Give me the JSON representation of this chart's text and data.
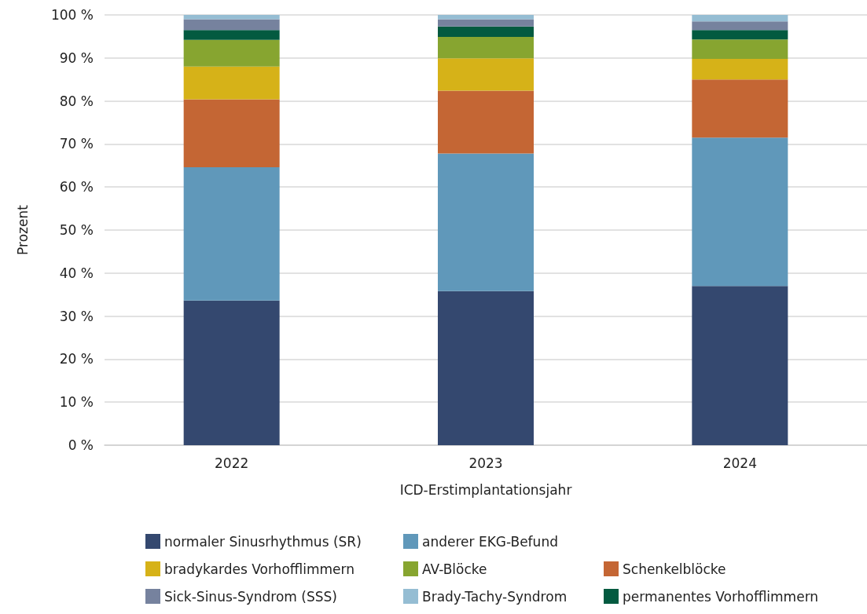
{
  "chart_data": {
    "type": "bar",
    "stacked": true,
    "xlabel": "ICD-Erstimplantationsjahr",
    "ylabel": "Prozent",
    "categories": [
      "2022",
      "2023",
      "2024"
    ],
    "series": [
      {
        "name": "normaler Sinusrhythmus (SR)",
        "color": "#34486f",
        "values": [
          33.6,
          35.8,
          37.0
        ]
      },
      {
        "name": "anderer EKG-Befund",
        "color": "#6098ba",
        "values": [
          31.0,
          32.0,
          34.5
        ]
      },
      {
        "name": "Schenkelblöcke",
        "color": "#c46634",
        "values": [
          15.8,
          14.6,
          13.5
        ]
      },
      {
        "name": "bradykardes Vorhofflimmern",
        "color": "#d6b218",
        "values": [
          7.6,
          7.5,
          4.8
        ]
      },
      {
        "name": "AV-Blöcke",
        "color": "#87a530",
        "values": [
          6.2,
          5.0,
          4.5
        ]
      },
      {
        "name": "permanentes Vorhofflimmern",
        "color": "#035a40",
        "values": [
          2.3,
          2.4,
          2.2
        ]
      },
      {
        "name": "Sick-Sinus-Syndrom (SSS)",
        "color": "#76829e",
        "values": [
          2.5,
          1.7,
          2.0
        ]
      },
      {
        "name": "Brady-Tachy-Syndrom",
        "color": "#95bdd3",
        "values": [
          1.0,
          1.0,
          1.5
        ]
      }
    ],
    "ylim": [
      0,
      100
    ],
    "yticks": [
      {
        "value": 0,
        "label": "0 %"
      },
      {
        "value": 10,
        "label": "10 %"
      },
      {
        "value": 20,
        "label": "20 %"
      },
      {
        "value": 30,
        "label": "30 %"
      },
      {
        "value": 40,
        "label": "40 %"
      },
      {
        "value": 50,
        "label": "50 %"
      },
      {
        "value": 60,
        "label": "60 %"
      },
      {
        "value": 70,
        "label": "70 %"
      },
      {
        "value": 80,
        "label": "80 %"
      },
      {
        "value": 90,
        "label": "90 %"
      },
      {
        "value": 100,
        "label": "100 %"
      }
    ],
    "grid": "y",
    "legend": "bottom"
  }
}
